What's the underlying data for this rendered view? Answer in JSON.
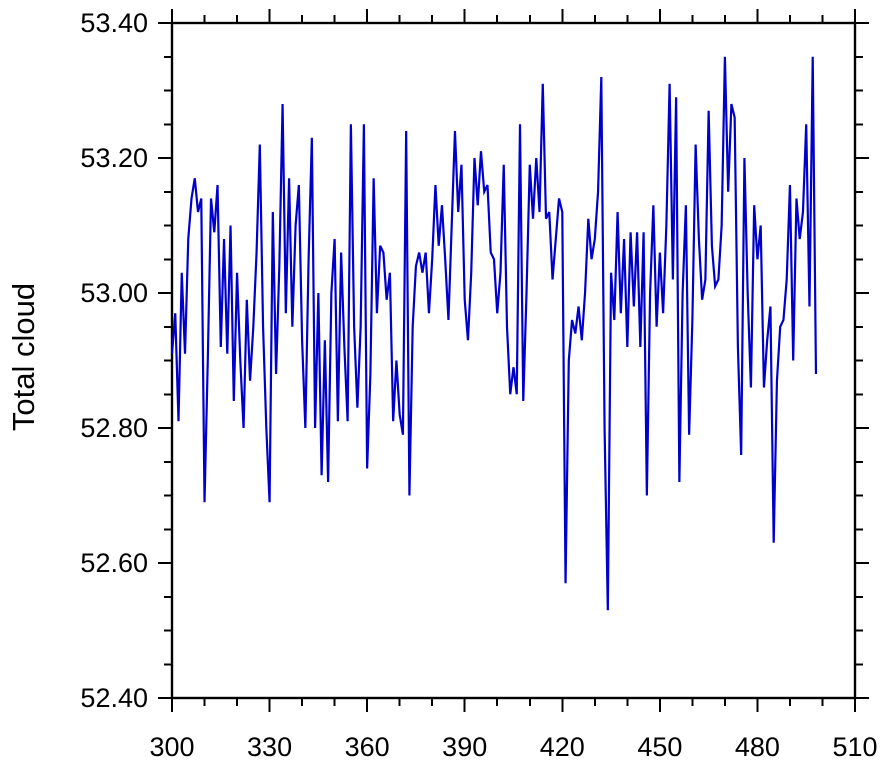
{
  "figure": {
    "background": "#ffffff",
    "frame_color": "#000000",
    "text_color": "#000000"
  },
  "chart_data": {
    "type": "line",
    "title": "",
    "xlabel": "",
    "ylabel": "Total cloud",
    "grid": false,
    "legend_position": "none",
    "xlim": [
      300,
      510
    ],
    "ylim": [
      52.4,
      53.4
    ],
    "x_major_ticks": [
      300,
      330,
      360,
      390,
      420,
      450,
      480,
      510
    ],
    "x_tick_labels": [
      "300",
      "330",
      "360",
      "390",
      "420",
      "450",
      "480",
      "510"
    ],
    "x_minor_step": 10,
    "y_major_ticks": [
      52.4,
      52.6,
      52.8,
      53.0,
      53.2,
      53.4
    ],
    "y_tick_labels": [
      "52.40",
      "52.60",
      "52.80",
      "53.00",
      "53.20",
      "53.40"
    ],
    "y_minor_step": 0.05,
    "line_color": "#0000cc",
    "line_width": 2.2,
    "series": [
      {
        "name": "total-cloud",
        "x_start": 300,
        "x_step": 1,
        "values": [
          52.91,
          52.97,
          52.81,
          53.03,
          52.91,
          53.08,
          53.14,
          53.17,
          53.12,
          53.14,
          52.69,
          52.9,
          53.14,
          53.09,
          53.16,
          52.92,
          53.08,
          52.91,
          53.1,
          52.84,
          53.03,
          52.9,
          52.8,
          52.99,
          52.87,
          52.95,
          53.06,
          53.22,
          52.95,
          52.8,
          52.69,
          53.12,
          52.88,
          53.04,
          53.28,
          52.97,
          53.17,
          52.95,
          53.1,
          53.16,
          52.93,
          52.8,
          53.05,
          53.23,
          52.8,
          53.0,
          52.73,
          52.93,
          52.72,
          53.0,
          53.08,
          52.81,
          53.06,
          52.92,
          52.81,
          53.25,
          52.95,
          52.83,
          52.95,
          53.25,
          52.74,
          52.88,
          53.17,
          52.97,
          53.07,
          53.06,
          52.99,
          53.03,
          52.81,
          52.9,
          52.82,
          52.79,
          53.24,
          52.7,
          52.95,
          53.04,
          53.06,
          53.03,
          53.06,
          52.97,
          53.05,
          53.16,
          53.07,
          53.13,
          53.05,
          52.96,
          53.1,
          53.24,
          53.12,
          53.19,
          52.99,
          52.93,
          53.03,
          53.2,
          53.13,
          53.21,
          53.15,
          53.16,
          53.06,
          53.05,
          52.97,
          53.03,
          53.19,
          52.95,
          52.85,
          52.89,
          52.85,
          53.25,
          52.84,
          53.0,
          53.19,
          53.11,
          53.2,
          53.12,
          53.31,
          53.11,
          53.12,
          53.02,
          53.08,
          53.14,
          53.12,
          52.57,
          52.9,
          52.96,
          52.94,
          52.98,
          52.93,
          53.0,
          53.11,
          53.05,
          53.08,
          53.15,
          53.32,
          52.8,
          52.53,
          53.03,
          52.96,
          53.12,
          52.97,
          53.08,
          52.92,
          53.09,
          52.98,
          53.09,
          52.92,
          53.09,
          52.7,
          53.0,
          53.13,
          52.95,
          53.06,
          52.97,
          53.1,
          53.31,
          53.02,
          53.29,
          52.72,
          53.0,
          53.13,
          52.79,
          52.96,
          53.22,
          53.08,
          52.99,
          53.02,
          53.27,
          53.07,
          53.01,
          53.02,
          53.1,
          53.35,
          53.15,
          53.28,
          53.26,
          52.92,
          52.76,
          53.2,
          53.0,
          52.86,
          53.13,
          53.05,
          53.1,
          52.86,
          52.93,
          52.98,
          52.63,
          52.87,
          52.95,
          52.96,
          53.02,
          53.16,
          52.9,
          53.14,
          53.08,
          53.12,
          53.25,
          52.98,
          53.35,
          52.88
        ]
      }
    ]
  }
}
